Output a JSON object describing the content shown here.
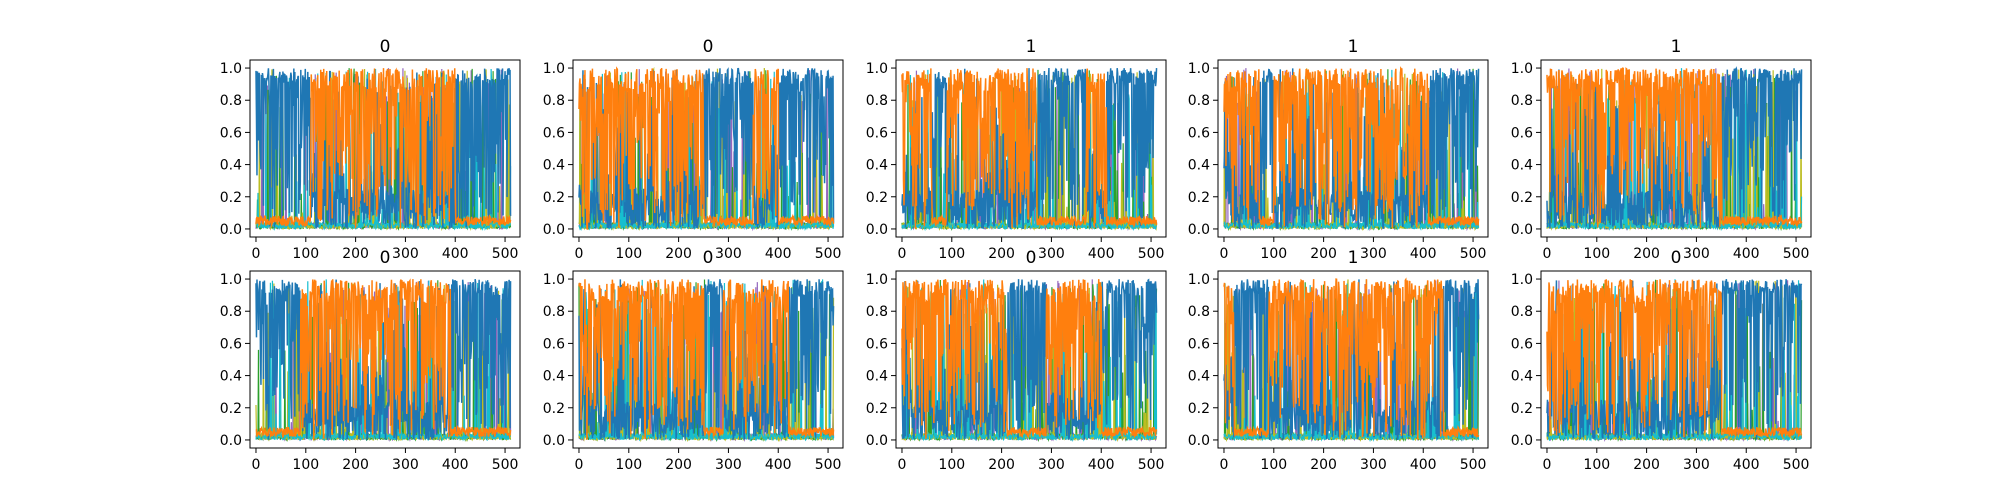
{
  "chart_data": {
    "type": "line",
    "layout": {
      "rows": 2,
      "cols": 5
    },
    "xlim": [
      -12,
      530
    ],
    "ylim": [
      -0.05,
      1.05
    ],
    "xticks": [
      0,
      100,
      200,
      300,
      400,
      500
    ],
    "yticks": [
      0.0,
      0.2,
      0.4,
      0.6,
      0.8,
      1.0
    ],
    "xtick_labels": [
      "0",
      "100",
      "200",
      "300",
      "400",
      "500"
    ],
    "ytick_labels": [
      "0.0",
      "0.2",
      "0.4",
      "0.6",
      "0.8",
      "1.0"
    ],
    "n_points": 512,
    "series_colors": [
      "#1f77b4",
      "#17becf",
      "#bcbd22",
      "#2ca02c",
      "#9467bd",
      "#ff7f0e"
    ],
    "grid": false,
    "panels": [
      {
        "title": "0",
        "orange_regions": [
          [
            110,
            400
          ]
        ]
      },
      {
        "title": "0",
        "orange_regions": [
          [
            0,
            250
          ],
          [
            350,
            400
          ]
        ]
      },
      {
        "title": "1",
        "orange_regions": [
          [
            0,
            60
          ],
          [
            90,
            270
          ],
          [
            370,
            410
          ]
        ]
      },
      {
        "title": "1",
        "orange_regions": [
          [
            0,
            70
          ],
          [
            100,
            410
          ]
        ]
      },
      {
        "title": "1",
        "orange_regions": [
          [
            0,
            350
          ]
        ]
      },
      {
        "title": "0",
        "orange_regions": [
          [
            90,
            390
          ]
        ]
      },
      {
        "title": "0",
        "orange_regions": [
          [
            0,
            250
          ],
          [
            290,
            420
          ]
        ]
      },
      {
        "title": "0",
        "orange_regions": [
          [
            0,
            210
          ],
          [
            290,
            400
          ]
        ]
      },
      {
        "title": "1",
        "orange_regions": [
          [
            0,
            20
          ],
          [
            90,
            440
          ]
        ]
      },
      {
        "title": "0",
        "orange_regions": [
          [
            0,
            350
          ]
        ]
      }
    ]
  }
}
